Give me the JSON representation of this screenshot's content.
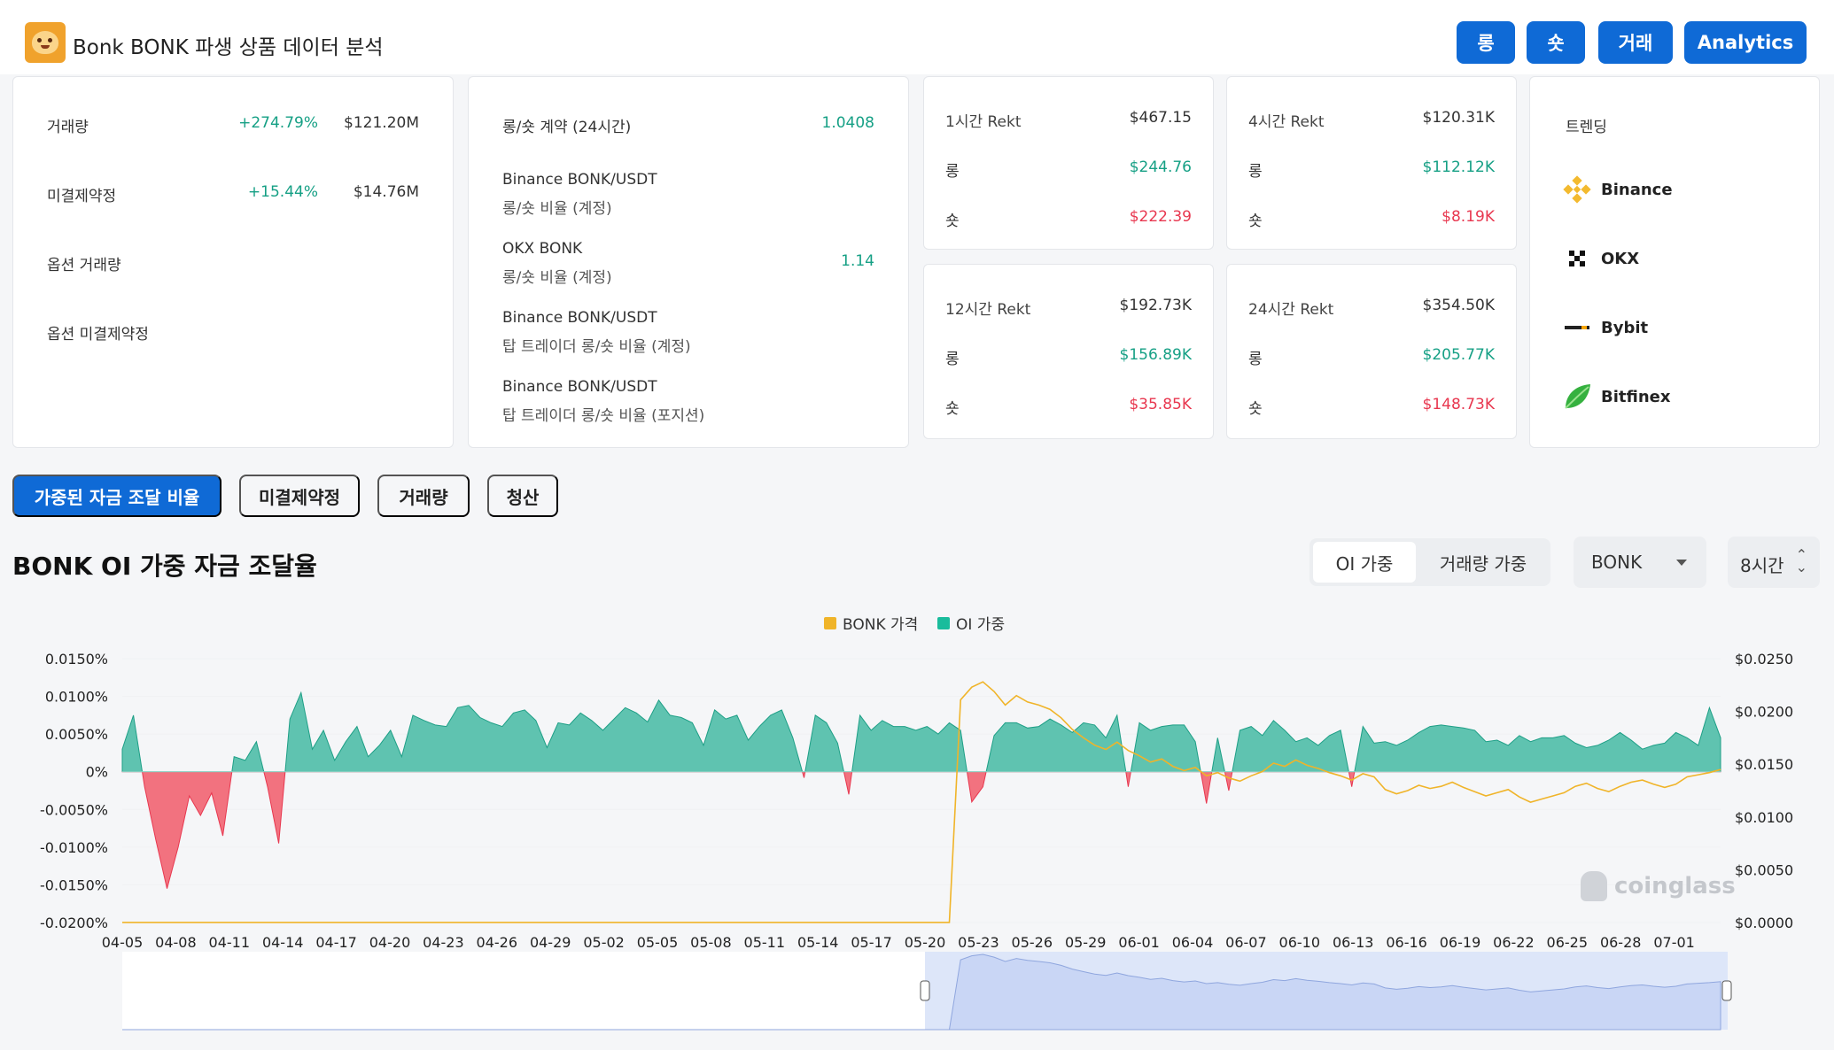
{
  "header": {
    "title": "Bonk BONK 파생 상품 데이터 분석",
    "buttons": [
      "롱",
      "숏",
      "거래",
      "Analytics"
    ]
  },
  "stats": {
    "volume": {
      "label": "거래량",
      "change": "+274.79%",
      "value": "$121.20M"
    },
    "oi": {
      "label": "미결제약정",
      "change": "+15.44%",
      "value": "$14.76M"
    },
    "options_volume": {
      "label": "옵션 거래량"
    },
    "options_oi": {
      "label": "옵션 미결제약정"
    }
  },
  "ratios": {
    "main": {
      "label": "롱/숏 계약 (24시간)",
      "value": "1.0408"
    },
    "items": [
      {
        "title": "Binance BONK/USDT",
        "sub": "롱/숏 비율 (계정)",
        "value": ""
      },
      {
        "title": "OKX BONK",
        "sub": "롱/숏 비율 (계정)",
        "value": "1.14"
      },
      {
        "title": "Binance BONK/USDT",
        "sub": "탑 트레이더 롱/숏 비율 (계정)",
        "value": ""
      },
      {
        "title": "Binance BONK/USDT",
        "sub": "탑 트레이더 롱/숏 비율 (포지션)",
        "value": ""
      }
    ]
  },
  "rekt": [
    {
      "title": "1시간 Rekt",
      "total": "$467.15",
      "long_label": "롱",
      "long": "$244.76",
      "short_label": "숏",
      "short": "$222.39"
    },
    {
      "title": "4시간 Rekt",
      "total": "$120.31K",
      "long_label": "롱",
      "long": "$112.12K",
      "short_label": "숏",
      "short": "$8.19K"
    },
    {
      "title": "12시간 Rekt",
      "total": "$192.73K",
      "long_label": "롱",
      "long": "$156.89K",
      "short_label": "숏",
      "short": "$35.85K"
    },
    {
      "title": "24시간 Rekt",
      "total": "$354.50K",
      "long_label": "롱",
      "long": "$205.77K",
      "short_label": "숏",
      "short": "$148.73K"
    }
  ],
  "trending": {
    "title": "트렌딩",
    "exchanges": [
      {
        "name": "Binance",
        "icon": "binance-icon"
      },
      {
        "name": "OKX",
        "icon": "okx-icon"
      },
      {
        "name": "Bybit",
        "icon": "bybit-icon"
      },
      {
        "name": "Bitfinex",
        "icon": "bitfinex-icon"
      }
    ]
  },
  "tabs": [
    "가중된 자금 조달 비율",
    "미결제약정",
    "거래량",
    "청산"
  ],
  "chart_controls": {
    "title": "BONK OI 가중 자금 조달율",
    "segments": [
      "OI 가중",
      "거래량 가중"
    ],
    "symbol": "BONK",
    "interval": "8시간"
  },
  "watermark": "coinglass",
  "colors": {
    "accent": "#0f6ad6",
    "positive": "#16a085",
    "negative": "#e8374f",
    "price": "#f0b429",
    "area_pos": "#5fc3b0",
    "area_neg": "#f2727f"
  },
  "chart_data": {
    "type": "area",
    "legend": [
      "BONK 가격",
      "OI 가중"
    ],
    "legend_position": "top-center",
    "y_left_ticks": [
      "0.0150%",
      "0.0100%",
      "0.0050%",
      "0%",
      "-0.0050%",
      "-0.0100%",
      "-0.0150%",
      "-0.0200%"
    ],
    "y_right_ticks": [
      "$0.0250",
      "$0.0200",
      "$0.0150",
      "$0.0100",
      "$0.0050",
      "$0.0000"
    ],
    "y_left_range": [
      -0.02,
      0.015
    ],
    "y_right_range": [
      0,
      0.025
    ],
    "x_ticks": [
      "04-05",
      "04-08",
      "04-11",
      "04-14",
      "04-17",
      "04-20",
      "04-23",
      "04-26",
      "04-29",
      "05-02",
      "05-05",
      "05-08",
      "05-11",
      "05-14",
      "05-17",
      "05-20",
      "05-23",
      "05-26",
      "05-29",
      "06-01",
      "06-04",
      "06-07",
      "06-10",
      "06-13",
      "06-16",
      "06-19",
      "06-22",
      "06-25",
      "06-28",
      "07-01"
    ],
    "series": [
      {
        "name": "OI 가중",
        "unit": "%",
        "values": [
          0.003,
          0.0075,
          -0.002,
          -0.009,
          -0.0155,
          -0.01,
          -0.0032,
          -0.0058,
          -0.0028,
          -0.0085,
          0.002,
          0.0015,
          0.004,
          -0.002,
          -0.0095,
          0.007,
          0.0105,
          0.003,
          0.0055,
          0.0015,
          0.004,
          0.006,
          0.002,
          0.0035,
          0.0055,
          0.002,
          0.0075,
          0.0068,
          0.0062,
          0.006,
          0.0085,
          0.0088,
          0.0072,
          0.0065,
          0.006,
          0.0078,
          0.0082,
          0.0068,
          0.0032,
          0.0065,
          0.0062,
          0.0078,
          0.0068,
          0.0055,
          0.007,
          0.0085,
          0.0078,
          0.0066,
          0.0095,
          0.0075,
          0.0072,
          0.0065,
          0.0035,
          0.0082,
          0.007,
          0.0075,
          0.0042,
          0.006,
          0.0075,
          0.0082,
          0.0045,
          -0.0008,
          0.0075,
          0.0065,
          0.0038,
          -0.003,
          0.0075,
          0.0055,
          0.0068,
          0.006,
          0.006,
          0.0055,
          0.006,
          0.005,
          0.0065,
          0.0055,
          -0.004,
          -0.002,
          0.0048,
          0.0065,
          0.0065,
          0.0058,
          0.006,
          0.007,
          0.0062,
          0.0052,
          0.0065,
          0.0062,
          0.0045,
          0.0075,
          -0.002,
          0.0065,
          0.0055,
          0.006,
          0.0062,
          0.0062,
          0.004,
          -0.0042,
          0.0045,
          -0.0025,
          0.0055,
          0.006,
          0.0048,
          0.0068,
          0.0055,
          0.004,
          0.0045,
          0.0035,
          0.0048,
          0.0055,
          -0.002,
          0.006,
          0.0038,
          0.004,
          0.0035,
          0.0042,
          0.0052,
          0.006,
          0.0062,
          0.006,
          0.0058,
          0.0055,
          0.004,
          0.0042,
          0.0035,
          0.0048,
          0.004,
          0.0045,
          0.0045,
          0.0048,
          0.0038,
          0.0032,
          0.0035,
          0.0042,
          0.0052,
          0.0042,
          0.003,
          0.0035,
          0.0038,
          0.0052,
          0.0045,
          0.0035,
          0.0085,
          0.0045
        ]
      },
      {
        "name": "BONK 가격",
        "unit": "$",
        "values": [
          1e-05,
          1e-05,
          1e-05,
          1e-05,
          1e-05,
          1e-05,
          1e-05,
          1e-05,
          1e-05,
          1e-05,
          1e-05,
          1e-05,
          1e-05,
          1e-05,
          1e-05,
          1e-05,
          1e-05,
          1e-05,
          1e-05,
          1e-05,
          1e-05,
          1e-05,
          1e-05,
          1e-05,
          1e-05,
          1e-05,
          1e-05,
          1e-05,
          1e-05,
          1e-05,
          1e-05,
          1e-05,
          1e-05,
          1e-05,
          1e-05,
          1e-05,
          1e-05,
          1e-05,
          1e-05,
          1e-05,
          1e-05,
          1e-05,
          1e-05,
          1e-05,
          1e-05,
          1e-05,
          1e-05,
          1e-05,
          1e-05,
          1e-05,
          1e-05,
          1e-05,
          1e-05,
          1e-05,
          1e-05,
          1e-05,
          1e-05,
          1e-05,
          1e-05,
          1e-05,
          1e-05,
          1e-05,
          1e-05,
          1e-05,
          1e-05,
          1e-05,
          1e-05,
          1e-05,
          1e-05,
          1e-05,
          1e-05,
          1e-05,
          1e-05,
          1e-05,
          1e-05,
          0.0211,
          0.0223,
          0.0228,
          0.0219,
          0.0206,
          0.0215,
          0.0209,
          0.0206,
          0.0202,
          0.0194,
          0.0183,
          0.0175,
          0.0168,
          0.0164,
          0.0171,
          0.0163,
          0.0158,
          0.0152,
          0.0155,
          0.0148,
          0.0144,
          0.0147,
          0.0139,
          0.0142,
          0.0137,
          0.0134,
          0.0139,
          0.0143,
          0.0151,
          0.0148,
          0.0154,
          0.0149,
          0.0146,
          0.0142,
          0.0139,
          0.0135,
          0.0141,
          0.0138,
          0.0126,
          0.0122,
          0.0125,
          0.013,
          0.0127,
          0.0129,
          0.0133,
          0.0128,
          0.0124,
          0.012,
          0.0123,
          0.0126,
          0.0119,
          0.0114,
          0.0117,
          0.012,
          0.0123,
          0.0129,
          0.0132,
          0.0127,
          0.0124,
          0.0129,
          0.0133,
          0.0135,
          0.0131,
          0.0128,
          0.0131,
          0.0138,
          0.014,
          0.0142,
          0.0145
        ]
      }
    ]
  }
}
